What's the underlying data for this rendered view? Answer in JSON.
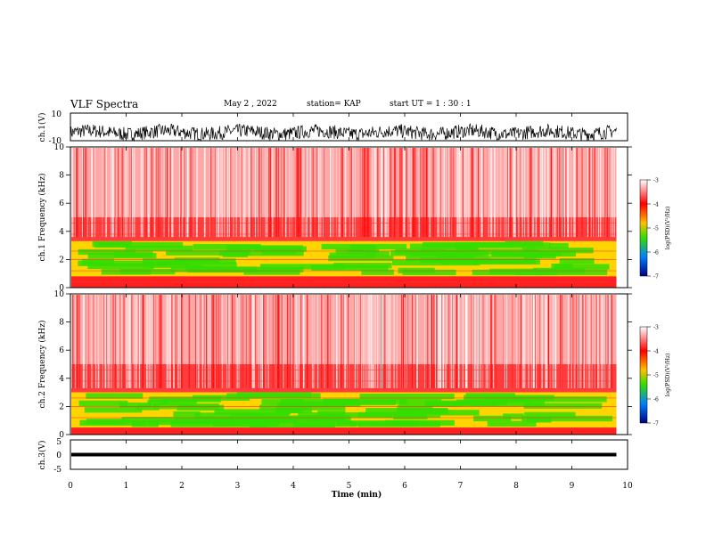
{
  "header": {
    "title": "VLF Spectra",
    "date": "May 2 , 2022",
    "station": "station= KAP",
    "start": "start UT = 1 : 30 : 1"
  },
  "colors": {
    "background": "#ffffff",
    "spectrogram_low": "#ff0000",
    "spectrogram_mid": "#ffe000",
    "spectrogram_band": "#33dd00",
    "waveform": "#000000"
  },
  "chart_data": [
    {
      "type": "line",
      "id": "ch1-waveform",
      "ylabel": "ch.1(V)",
      "ylim": [
        -10,
        10
      ],
      "yticks": [
        "10",
        "-10"
      ],
      "xlim": [
        0,
        10
      ],
      "data_end_min": 9.8,
      "description_values": {
        "mean_v": -4,
        "amplitude_v": 5
      }
    },
    {
      "type": "heatmap",
      "id": "ch1-spectrogram",
      "ylabel": "ch.1 Frequency (kHz)",
      "ylim": [
        0,
        10
      ],
      "yticks": [
        "0",
        "2",
        "4",
        "6",
        "8",
        "10"
      ],
      "xlim": [
        0,
        10
      ],
      "data_end_min": 9.8,
      "green_band_khz": [
        0.8,
        3.3
      ],
      "colorbar": {
        "label": "log(PSD)(V²/Hz)",
        "range": [
          -7,
          -3
        ],
        "ticks": [
          "-3",
          "-4",
          "-5",
          "-6",
          "-7"
        ]
      }
    },
    {
      "type": "heatmap",
      "id": "ch2-spectrogram",
      "ylabel": "ch.2 Frequency (kHz)",
      "ylim": [
        0,
        10
      ],
      "yticks": [
        "0",
        "2",
        "4",
        "6",
        "8",
        "10"
      ],
      "xlim": [
        0,
        10
      ],
      "data_end_min": 9.8,
      "green_band_khz": [
        0.5,
        3.0
      ],
      "colorbar": {
        "label": "log(PSD)(V²/Hz)",
        "range": [
          -7,
          -3
        ],
        "ticks": [
          "-3",
          "-4",
          "-5",
          "-6",
          "-7"
        ]
      }
    },
    {
      "type": "line",
      "id": "ch3-waveform",
      "ylabel": "ch.3(V)",
      "ylim": [
        -5,
        5
      ],
      "yticks": [
        "5",
        "0",
        "-5"
      ],
      "xlim": [
        0,
        10
      ],
      "data_end_min": 9.8,
      "description_values": {
        "mean_v": 0,
        "amplitude_v": 0.6
      }
    }
  ],
  "xaxis": {
    "label": "Time (min)",
    "ticks": [
      "0",
      "1",
      "2",
      "3",
      "4",
      "5",
      "6",
      "7",
      "8",
      "9",
      "10"
    ]
  }
}
